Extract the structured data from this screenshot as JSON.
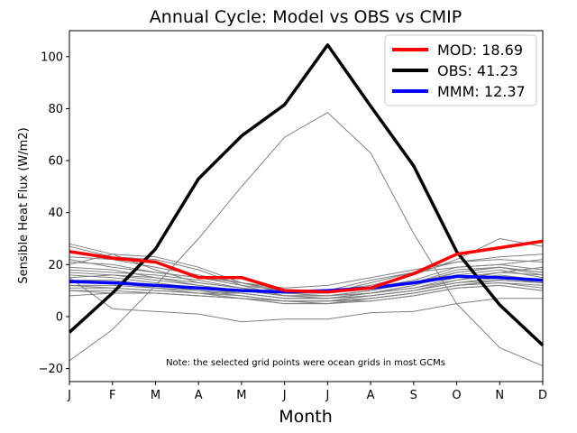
{
  "chart_data": {
    "type": "line",
    "title": "Annual Cycle: Model vs OBS vs CMIP",
    "xlabel": "Month",
    "ylabel": "Sensible Heat Flux (W/m2)",
    "categories": [
      "J",
      "F",
      "M",
      "A",
      "M",
      "J",
      "J",
      "A",
      "S",
      "O",
      "N",
      "D"
    ],
    "ylim": [
      -25,
      110
    ],
    "yticks": [
      -20,
      0,
      20,
      40,
      60,
      80,
      100
    ],
    "annotation": "Note: the selected grid points were ocean grids in most GCMs",
    "legend_position": "top-right",
    "series": [
      {
        "name": "MOD: 18.69",
        "role": "main",
        "color": "#ff0000",
        "values": [
          25.0,
          22.5,
          21.0,
          15.0,
          15.0,
          10.0,
          9.5,
          11.0,
          16.5,
          24.0,
          26.5,
          29.0
        ]
      },
      {
        "name": "OBS: 41.23",
        "role": "main",
        "color": "#000000",
        "values": [
          -6.0,
          9.0,
          26.0,
          53.0,
          69.5,
          81.5,
          104.5,
          81.0,
          58.0,
          25.0,
          4.5,
          -11.0
        ]
      },
      {
        "name": "MMM: 12.37",
        "role": "main",
        "color": "#0000ff",
        "values": [
          13.5,
          13.0,
          12.0,
          11.0,
          10.0,
          9.5,
          10.0,
          11.0,
          13.0,
          15.5,
          15.0,
          14.0
        ]
      }
    ],
    "cmip_color": "#808080",
    "cmip_series": [
      [
        -17,
        -5,
        12,
        30,
        50,
        69,
        78.5,
        63,
        32,
        5,
        -12,
        -19
      ],
      [
        15,
        3,
        2,
        1,
        -2,
        -1,
        -1,
        1.5,
        2,
        5,
        7,
        7
      ],
      [
        27,
        23,
        22,
        18,
        12,
        8,
        7,
        9,
        11,
        14,
        17,
        19
      ],
      [
        20,
        24,
        23,
        19,
        13,
        9,
        9,
        13,
        17,
        19,
        20,
        18
      ],
      [
        28,
        24,
        18,
        13,
        11,
        9,
        10,
        12,
        16,
        22,
        30,
        27
      ],
      [
        23,
        22,
        19,
        16,
        13,
        10,
        10,
        14,
        17,
        21,
        22,
        21
      ],
      [
        17,
        16,
        15,
        12,
        10,
        8,
        8,
        10,
        13,
        18,
        19,
        16
      ],
      [
        19,
        18,
        15,
        13,
        11,
        8,
        8,
        9,
        12,
        17,
        19,
        17
      ],
      [
        16,
        15,
        13,
        11,
        9,
        7,
        7,
        9,
        12,
        16,
        18,
        15
      ],
      [
        14,
        14,
        12,
        10,
        9,
        7,
        7,
        8,
        10,
        14,
        16,
        14
      ],
      [
        13,
        13,
        11,
        10,
        8,
        6,
        6,
        8,
        10,
        13,
        14,
        13
      ],
      [
        12,
        12,
        11,
        9,
        8,
        6,
        5,
        7,
        9,
        12,
        13,
        12
      ],
      [
        11,
        11,
        10,
        9,
        7,
        5,
        5,
        7,
        9,
        12,
        13,
        11
      ],
      [
        10,
        10,
        9,
        8,
        7,
        5,
        5,
        6,
        8,
        11,
        12,
        10
      ],
      [
        10,
        9,
        9,
        8,
        7,
        6,
        6,
        7,
        9,
        12,
        14,
        13
      ],
      [
        8,
        9,
        9,
        8,
        7,
        6,
        6,
        6,
        8,
        11,
        12,
        10
      ],
      [
        15,
        16,
        14,
        12,
        10,
        8,
        8,
        10,
        13,
        17,
        19,
        17
      ],
      [
        18,
        17,
        16,
        14,
        11,
        9,
        8,
        9,
        11,
        15,
        17,
        16
      ],
      [
        12,
        11,
        10,
        9,
        9,
        7,
        7,
        8,
        10,
        13,
        15,
        13
      ],
      [
        21,
        20,
        17,
        15,
        12,
        10,
        9,
        11,
        14,
        19,
        20,
        22
      ],
      [
        22,
        19,
        17,
        15,
        13,
        11,
        12,
        15,
        18,
        21,
        23,
        24
      ]
    ]
  }
}
